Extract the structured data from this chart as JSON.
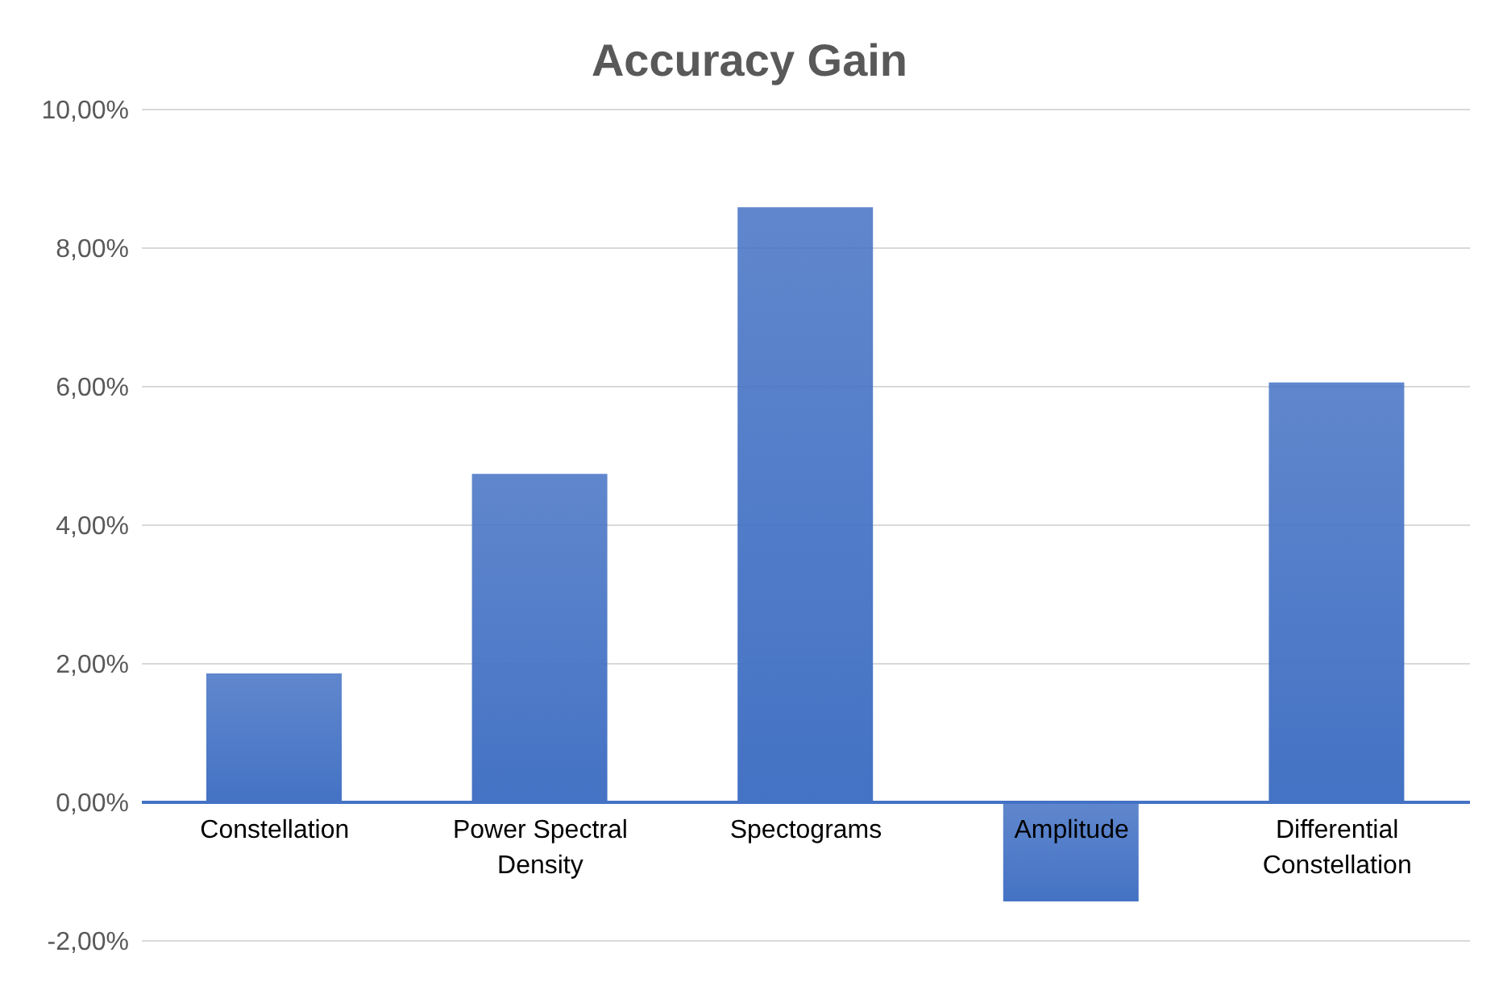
{
  "chart_data": {
    "type": "bar",
    "title": "Accuracy Gain",
    "categories": [
      "Constellation",
      "Power Spectral Density",
      "Spectograms",
      "Amplitude",
      "Differential Constellation"
    ],
    "values": [
      1.86,
      4.74,
      8.59,
      -1.43,
      6.06
    ],
    "color": "#4472c4",
    "ylim": [
      -2,
      10
    ],
    "yticks": [
      {
        "value": -2,
        "label": "-2,00%"
      },
      {
        "value": 0,
        "label": "0,00%"
      },
      {
        "value": 2,
        "label": "2,00%"
      },
      {
        "value": 4,
        "label": "4,00%"
      },
      {
        "value": 6,
        "label": "6,00%"
      },
      {
        "value": 8,
        "label": "8,00%"
      },
      {
        "value": 10,
        "label": "10,00%"
      }
    ],
    "grid": "y"
  }
}
